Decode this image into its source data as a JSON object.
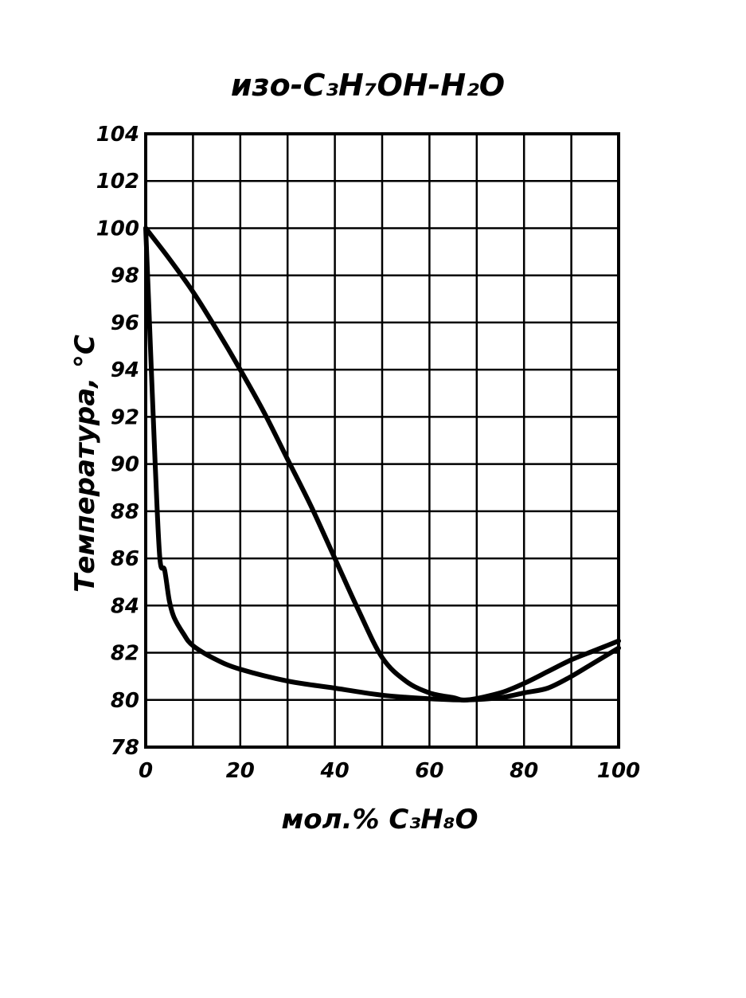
{
  "chart_data": {
    "type": "line",
    "title": "изо-C₃H₇OH-H₂O",
    "xlabel": "мол.% C₃H₈O",
    "ylabel": "Температура, °C",
    "xlim": [
      0,
      100
    ],
    "ylim": [
      78,
      104
    ],
    "x_ticks": [
      "0",
      "20",
      "40",
      "60",
      "80",
      "100"
    ],
    "y_ticks": [
      "78",
      "80",
      "82",
      "84",
      "86",
      "88",
      "90",
      "92",
      "94",
      "96",
      "98",
      "100",
      "102",
      "104"
    ],
    "grid": true,
    "series": [
      {
        "x": [
          0,
          1,
          2,
          3,
          4,
          5,
          6,
          8,
          10,
          15,
          20,
          30,
          40,
          50,
          60,
          68,
          75,
          80,
          85,
          90,
          95,
          100
        ],
        "y": [
          100,
          95,
          90,
          86,
          85.5,
          84.2,
          83.5,
          82.8,
          82.3,
          81.7,
          81.3,
          80.8,
          80.5,
          80.2,
          80.05,
          80,
          80.1,
          80.3,
          80.5,
          81.0,
          81.6,
          82.2
        ]
      },
      {
        "x": [
          0,
          5,
          10,
          15,
          20,
          25,
          30,
          35,
          40,
          45,
          50,
          55,
          60,
          65,
          68,
          75,
          80,
          85,
          90,
          95,
          100
        ],
        "y": [
          100,
          98.7,
          97.3,
          95.7,
          94.0,
          92.2,
          90.2,
          88.2,
          86.0,
          83.8,
          81.8,
          80.8,
          80.3,
          80.1,
          80.0,
          80.3,
          80.7,
          81.2,
          81.7,
          82.1,
          82.5
        ]
      }
    ]
  }
}
